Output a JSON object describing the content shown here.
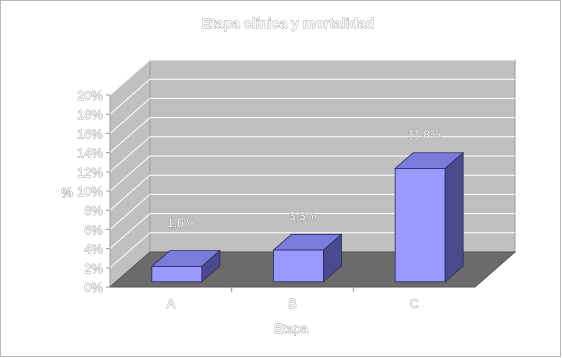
{
  "chart_data": {
    "type": "bar",
    "title": "Etapa clínica y mortalidad",
    "xlabel": "Etapa",
    "ylabel": "%",
    "categories": [
      "A",
      "B",
      "C"
    ],
    "values": [
      1.6,
      3.3,
      11.8
    ],
    "data_labels": [
      "1,6%",
      "3,3%",
      "11,8%"
    ],
    "ylim": [
      0,
      20
    ],
    "yticks": [
      "0%",
      "2%",
      "4%",
      "6%",
      "8%",
      "10%",
      "12%",
      "14%",
      "16%",
      "18%",
      "20%"
    ],
    "grid": true,
    "legend": "none",
    "three_d": true
  },
  "colors": {
    "bar_front": "#9999ff",
    "bar_top": "#7b7bdc",
    "bar_side": "#4a4a8c",
    "wall": "#c0c0c0",
    "floor": "#6b6b6b",
    "grid": "#ffffff"
  }
}
